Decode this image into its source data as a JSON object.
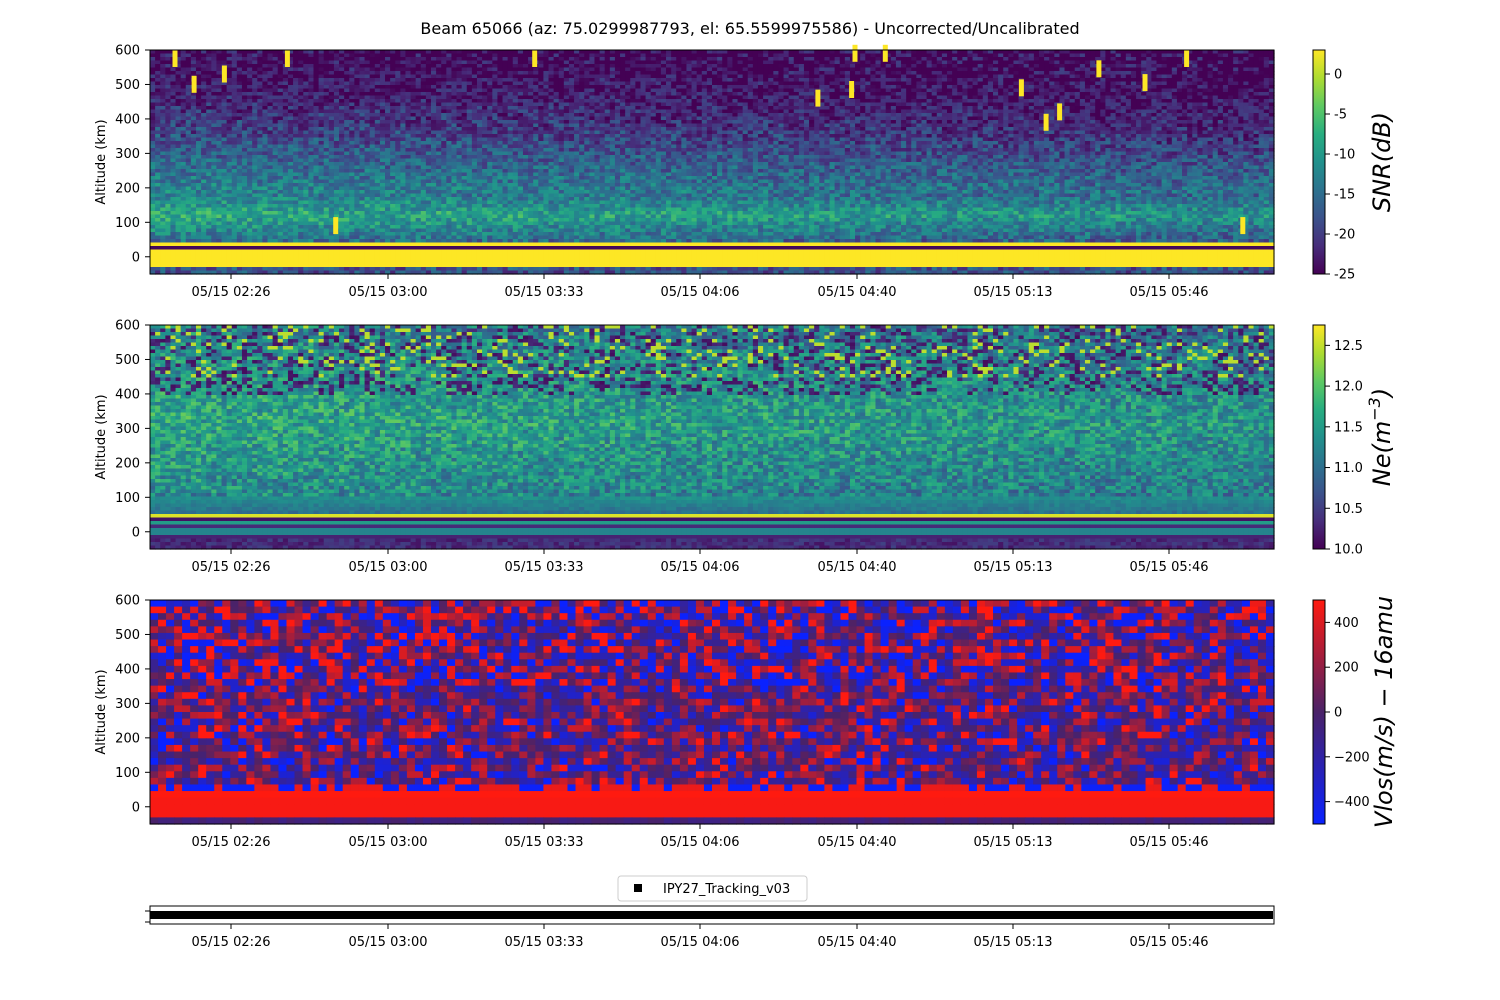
{
  "figure": {
    "title": "Beam 65066 (az: 75.0299987793, el: 65.5599975586) - Uncorrected/Uncalibrated"
  },
  "chart_data": [
    {
      "type": "heatmap",
      "id": "snr",
      "ylabel": "Altitude (km)",
      "xticks": [
        "05/15 02:26",
        "05/15 03:00",
        "05/15 03:33",
        "05/15 04:06",
        "05/15 04:40",
        "05/15 05:13",
        "05/15 05:46"
      ],
      "yticks": [
        0,
        100,
        200,
        300,
        400,
        500,
        600
      ],
      "ylim": [
        -50,
        600
      ],
      "colormap": "viridis",
      "colorbar": {
        "label": "SNR(dB)",
        "range": [
          -25,
          3
        ],
        "ticks": [
          0,
          -5,
          -10,
          -15,
          -20,
          -25
        ]
      }
    },
    {
      "type": "heatmap",
      "id": "ne",
      "ylabel": "Altitude (km)",
      "xticks": [
        "05/15 02:26",
        "05/15 03:00",
        "05/15 03:33",
        "05/15 04:06",
        "05/15 04:40",
        "05/15 05:13",
        "05/15 05:46"
      ],
      "yticks": [
        0,
        100,
        200,
        300,
        400,
        500,
        600
      ],
      "ylim": [
        -50,
        600
      ],
      "colormap": "viridis",
      "colorbar": {
        "label": "Ne(m",
        "label_sup": "−3",
        "label_close": ")",
        "range": [
          10.0,
          12.75
        ],
        "ticks": [
          "12.5",
          "12.0",
          "11.5",
          "11.0",
          "10.5",
          "10.0"
        ]
      }
    },
    {
      "type": "heatmap",
      "id": "vlos",
      "ylabel": "Altitude (km)",
      "xticks": [
        "05/15 02:26",
        "05/15 03:00",
        "05/15 03:33",
        "05/15 04:06",
        "05/15 04:40",
        "05/15 05:13",
        "05/15 05:46"
      ],
      "yticks": [
        0,
        100,
        200,
        300,
        400,
        500,
        600
      ],
      "ylim": [
        -50,
        600
      ],
      "colormap": "blue-red",
      "colorbar": {
        "label": "Vlos(m/s) − 16amu",
        "range": [
          -500,
          500
        ],
        "ticks": [
          "400",
          "200",
          "0",
          "−200",
          "−400"
        ]
      }
    },
    {
      "type": "line",
      "id": "tracking",
      "xticks": [
        "05/15 02:26",
        "05/15 03:00",
        "05/15 03:33",
        "05/15 04:06",
        "05/15 04:40",
        "05/15 05:13",
        "05/15 05:46"
      ],
      "legend": {
        "entries": [
          "IPY27_Tracking_v03"
        ],
        "placement": "top-center",
        "marker": "square"
      },
      "series": [
        {
          "name": "IPY27_Tracking_v03",
          "value": "constant"
        }
      ]
    }
  ]
}
